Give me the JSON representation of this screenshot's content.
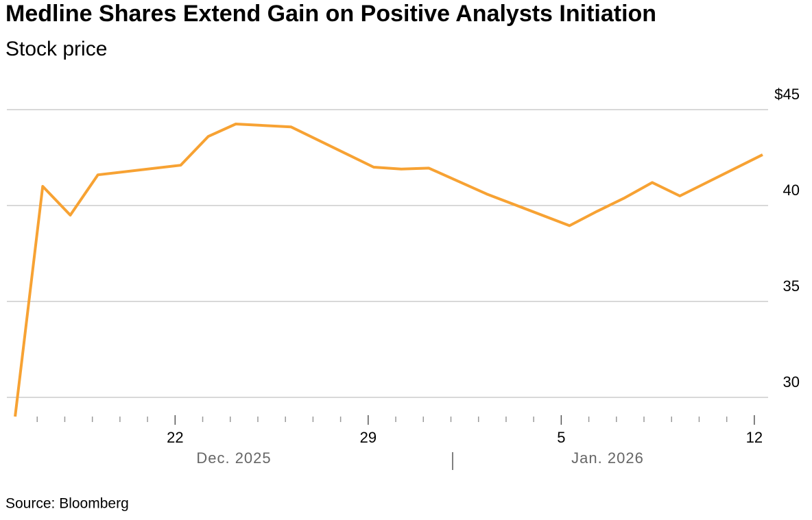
{
  "chart_data": {
    "type": "line",
    "title": "Medline Shares Extend Gain on Positive Analysts Initiation",
    "subtitle": "Stock price",
    "source": "Source: Bloomberg",
    "x": [
      16.2,
      17.2,
      18.2,
      19.2,
      22.2,
      23.2,
      24.2,
      26.2,
      29.2,
      30.2,
      31.2,
      33.3,
      36.3,
      37.3,
      38.3,
      39.3,
      40.3,
      43.3
    ],
    "series": [
      {
        "color": "#f7a233",
        "values": [
          29.0,
          41.0,
          39.5,
          41.6,
          42.1,
          43.6,
          44.25,
          44.1,
          42.0,
          41.9,
          41.95,
          40.6,
          38.95,
          39.7,
          40.4,
          41.2,
          40.5,
          42.65
        ]
      }
    ],
    "xlim": [
      15.9,
      43.5
    ],
    "xticks": [
      22,
      29,
      {
        "value": 36,
        "label": "5"
      },
      {
        "value": 43,
        "label": "12"
      }
    ],
    "xminorticks": [
      17,
      18,
      19,
      20,
      21,
      23,
      24,
      25,
      26,
      27,
      28,
      30,
      31,
      32,
      33,
      34,
      35,
      37,
      38,
      39,
      40,
      41,
      42
    ],
    "month_labels": [
      "Dec. 2025",
      "Jan. 2026"
    ],
    "ylim": [
      29,
      46
    ],
    "yticks": [
      30,
      35,
      40,
      {
        "value": 45,
        "label": "$45"
      }
    ],
    "grid": true
  }
}
